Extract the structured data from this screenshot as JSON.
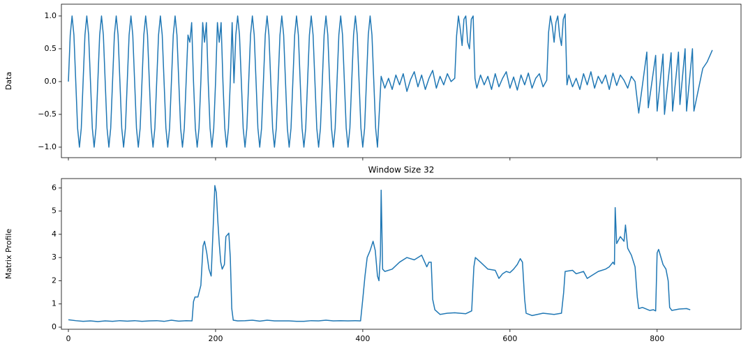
{
  "chart_data": [
    {
      "type": "line",
      "ylabel": "Data",
      "xlim": [
        -9.5,
        914
      ],
      "xticks": [
        0,
        200,
        400,
        600,
        800
      ],
      "ylim": [
        -1.16,
        1.18
      ],
      "yticks": [
        {
          "value": -1,
          "label": "−1.0"
        },
        {
          "value": -0.5,
          "label": "−0.5"
        },
        {
          "value": 0,
          "label": "0.0"
        },
        {
          "value": 0.5,
          "label": "0.5"
        },
        {
          "value": 1,
          "label": "1.0"
        }
      ],
      "series": [
        {
          "color": "#1f77b4",
          "x": [
            0,
            2.5,
            5,
            7.5,
            10,
            12.5,
            15,
            17.5,
            20,
            22.5,
            25,
            27.5,
            30,
            32.5,
            35,
            37.5,
            40,
            42.5,
            45,
            47.5,
            50,
            52.5,
            55,
            57.5,
            60,
            62.5,
            65,
            67.5,
            70,
            72.5,
            75,
            77.5,
            80,
            82.5,
            85,
            87.5,
            90,
            92.5,
            95,
            97.5,
            100,
            102.5,
            105,
            107.5,
            110,
            112.5,
            115,
            117.5,
            120,
            122.5,
            125,
            127.5,
            130,
            132.5,
            135,
            137.5,
            140,
            142.5,
            145,
            147.5,
            150,
            152.5,
            155,
            157.5,
            160,
            162.5,
            165,
            167.5,
            170,
            172.5,
            175,
            177.5,
            180,
            182.5,
            185,
            187.5,
            190,
            192.5,
            195,
            197.5,
            200,
            202.5,
            205,
            207.5,
            210,
            212.5,
            215,
            217.5,
            220,
            222.5,
            225,
            227.5,
            230,
            232.5,
            235,
            237.5,
            240,
            242.5,
            245,
            247.5,
            250,
            252.5,
            255,
            257.5,
            260,
            262.5,
            265,
            267.5,
            270,
            272.5,
            275,
            277.5,
            280,
            282.5,
            285,
            287.5,
            290,
            292.5,
            295,
            297.5,
            300,
            302.5,
            305,
            307.5,
            310,
            312.5,
            315,
            317.5,
            320,
            322.5,
            325,
            327.5,
            330,
            332.5,
            335,
            337.5,
            340,
            342.5,
            345,
            347.5,
            350,
            352.5,
            355,
            357.5,
            360,
            362.5,
            365,
            367.5,
            370,
            372.5,
            375,
            377.5,
            380,
            382.5,
            385,
            387.5,
            390,
            392.5,
            395,
            397.5,
            400,
            402.5,
            405,
            407.5,
            410,
            412.5,
            415,
            417.5,
            420,
            425,
            430,
            435,
            440,
            445,
            450,
            455,
            460,
            465,
            470,
            475,
            480,
            485,
            490,
            495,
            500,
            505,
            510,
            515,
            520,
            525,
            527.5,
            530,
            532.5,
            535,
            537.5,
            540,
            542.5,
            545,
            547.5,
            550,
            552.5,
            555,
            560,
            565,
            570,
            575,
            580,
            585,
            590,
            595,
            600,
            605,
            610,
            615,
            620,
            625,
            630,
            635,
            640,
            645,
            650,
            652.5,
            655,
            657.5,
            660,
            662.5,
            665,
            667.5,
            670,
            672.5,
            675,
            677.5,
            680,
            685,
            690,
            695,
            700,
            705,
            710,
            715,
            720,
            725,
            730,
            735,
            740,
            745,
            750,
            755,
            760,
            765,
            770,
            775,
            786,
            788,
            798,
            800,
            808,
            810,
            819,
            821,
            829,
            831,
            838,
            840,
            848,
            850,
            862,
            868,
            875
          ],
          "values": [
            0,
            0.71,
            1,
            0.71,
            0,
            -0.71,
            -1,
            -0.71,
            0,
            0.71,
            1,
            0.71,
            0,
            -0.71,
            -1,
            -0.71,
            0,
            0.71,
            1,
            0.71,
            0,
            -0.71,
            -1,
            -0.71,
            0,
            0.71,
            1,
            0.71,
            0,
            -0.71,
            -1,
            -0.71,
            0,
            0.71,
            1,
            0.71,
            0,
            -0.71,
            -1,
            -0.71,
            0,
            0.71,
            1,
            0.71,
            0,
            -0.71,
            -1,
            -0.71,
            0,
            0.71,
            1,
            0.71,
            0,
            -0.71,
            -1,
            -0.71,
            0,
            0.71,
            1,
            0.71,
            0,
            -0.71,
            -1,
            -0.71,
            0,
            0.71,
            0.6,
            0.9,
            0,
            -0.71,
            -1,
            -0.71,
            0,
            0.9,
            0.6,
            0.9,
            0,
            -0.71,
            -1,
            -0.71,
            0,
            0.9,
            0.6,
            0.9,
            0,
            -0.71,
            -1,
            -0.71,
            0,
            0.9,
            -0.02,
            0.71,
            1,
            0.71,
            0,
            -0.71,
            -1,
            -0.71,
            0,
            0.71,
            1,
            0.71,
            0,
            -0.71,
            -1,
            -0.71,
            0,
            0.71,
            1,
            0.71,
            0,
            -0.71,
            -1,
            -0.71,
            0,
            0.71,
            1,
            0.71,
            0,
            -0.71,
            -1,
            -0.71,
            0,
            0.71,
            1,
            0.71,
            0,
            -0.71,
            -1,
            -0.71,
            0,
            0.71,
            1,
            0.71,
            0,
            -0.71,
            -1,
            -0.71,
            0,
            0.71,
            1,
            0.71,
            0,
            -0.71,
            -1,
            -0.71,
            0,
            0.71,
            1,
            0.71,
            0,
            -0.71,
            -1,
            -0.71,
            0,
            0.71,
            1,
            0.71,
            0,
            -0.71,
            -1,
            -0.71,
            0,
            0.71,
            1,
            0.71,
            0,
            -0.71,
            -1,
            0.08,
            -0.1,
            0.05,
            -0.12,
            0.1,
            -0.05,
            0.12,
            -0.15,
            0.03,
            0.15,
            -0.08,
            0.1,
            -0.12,
            0.05,
            0.17,
            -0.1,
            0.08,
            -0.05,
            0.12,
            0,
            0.05,
            0.7,
            1,
            0.8,
            0.55,
            0.95,
            1,
            0.6,
            0.5,
            0.95,
            1,
            0.05,
            -0.1,
            0.1,
            -0.05,
            0.08,
            -0.12,
            0.12,
            -0.08,
            0.05,
            0.15,
            -0.1,
            0.07,
            -0.13,
            0.1,
            -0.05,
            0.13,
            -0.1,
            0.05,
            0.12,
            -0.08,
            0.02,
            0.75,
            1,
            0.85,
            0.6,
            0.9,
            1,
            0.7,
            0.55,
            0.95,
            1.03,
            -0.05,
            0.1,
            -0.08,
            0.05,
            -0.12,
            0.12,
            -0.05,
            0.15,
            -0.1,
            0.08,
            -0.03,
            0.1,
            -0.12,
            0.13,
            -0.06,
            0.1,
            0.02,
            -0.1,
            0.08,
            0,
            -0.48,
            0.45,
            -0.4,
            0.4,
            -0.45,
            0.42,
            -0.5,
            0.44,
            -0.45,
            0.45,
            -0.35,
            0.5,
            -0.45,
            0.5,
            -0.45,
            0.2,
            0.3,
            0.48
          ]
        }
      ]
    },
    {
      "type": "line",
      "title": "Window Size 32",
      "ylabel": "Matrix Profile",
      "xlim": [
        -9.5,
        914
      ],
      "xticks": [
        0,
        200,
        400,
        600,
        800
      ],
      "ylim": [
        -0.09,
        6.4
      ],
      "yticks": [
        0,
        1,
        2,
        3,
        4,
        5,
        6
      ],
      "series": [
        {
          "color": "#1f77b4",
          "x": [
            0,
            10,
            20,
            30,
            40,
            50,
            60,
            70,
            80,
            90,
            100,
            110,
            120,
            130,
            140,
            150,
            160,
            168,
            170,
            172,
            176,
            180,
            183,
            185,
            188,
            191,
            194,
            197,
            199,
            201,
            203,
            205,
            207,
            209,
            212,
            214,
            218,
            220,
            222,
            224,
            230,
            240,
            250,
            260,
            270,
            280,
            290,
            300,
            310,
            320,
            330,
            340,
            350,
            360,
            370,
            380,
            390,
            397,
            400,
            403,
            406,
            410,
            414,
            417,
            420,
            422,
            424,
            425,
            427,
            430,
            440,
            450,
            460,
            470,
            480,
            487,
            490,
            493,
            495,
            498,
            505,
            515,
            525,
            540,
            548,
            551,
            553,
            560,
            570,
            580,
            585,
            590,
            595,
            600,
            605,
            610,
            614,
            617,
            620,
            622,
            630,
            645,
            660,
            670,
            673,
            675,
            685,
            690,
            700,
            705,
            710,
            720,
            730,
            735,
            740,
            742,
            743,
            745,
            750,
            755,
            757,
            760,
            765,
            770,
            773,
            775,
            780,
            790,
            795,
            798,
            800,
            802,
            808,
            812,
            815,
            817,
            820,
            830,
            840,
            845
          ],
          "values": [
            0.32,
            0.28,
            0.25,
            0.27,
            0.24,
            0.27,
            0.25,
            0.28,
            0.26,
            0.28,
            0.25,
            0.27,
            0.28,
            0.25,
            0.3,
            0.26,
            0.28,
            0.27,
            1.1,
            1.3,
            1.3,
            1.8,
            3.5,
            3.7,
            3.2,
            2.5,
            2.2,
            4.5,
            6.1,
            5.8,
            4.6,
            3.6,
            2.8,
            2.5,
            2.7,
            3.9,
            4.05,
            3,
            0.8,
            0.3,
            0.27,
            0.28,
            0.3,
            0.26,
            0.3,
            0.27,
            0.27,
            0.27,
            0.25,
            0.25,
            0.28,
            0.27,
            0.3,
            0.27,
            0.28,
            0.27,
            0.28,
            0.27,
            1.2,
            2.2,
            3,
            3.3,
            3.7,
            3.3,
            2.2,
            2,
            3.1,
            5.9,
            2.5,
            2.4,
            2.5,
            2.8,
            3,
            2.9,
            3.1,
            2.6,
            2.8,
            2.8,
            1.2,
            0.75,
            0.55,
            0.6,
            0.62,
            0.58,
            0.7,
            2.6,
            3,
            2.8,
            2.5,
            2.45,
            2.1,
            2.3,
            2.4,
            2.35,
            2.5,
            2.7,
            2.95,
            2.8,
            1.2,
            0.6,
            0.5,
            0.6,
            0.55,
            0.6,
            1.5,
            2.4,
            2.45,
            2.3,
            2.4,
            2.1,
            2.2,
            2.4,
            2.5,
            2.6,
            2.8,
            2.7,
            5.15,
            3.6,
            3.9,
            3.7,
            4.4,
            3.4,
            3.1,
            2.6,
            1.3,
            0.8,
            0.85,
            0.72,
            0.75,
            0.7,
            3.2,
            3.35,
            2.7,
            2.5,
            2,
            0.85,
            0.72,
            0.78,
            0.8,
            0.75
          ]
        }
      ]
    }
  ]
}
